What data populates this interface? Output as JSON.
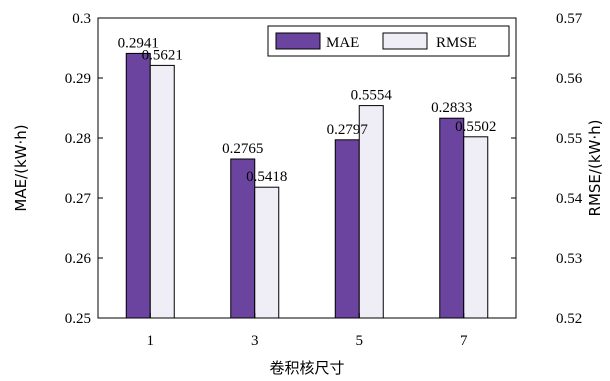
{
  "chart_data": {
    "type": "bar",
    "categories": [
      "1",
      "3",
      "5",
      "7"
    ],
    "xlabel": "卷积核尺寸",
    "ylabel_left": "MAE/(kW·h)",
    "ylabel_right": "RMSE/(kW·h)",
    "ylim_left": [
      0.25,
      0.3
    ],
    "ylim_right": [
      0.52,
      0.57
    ],
    "yticks_left": [
      "0.25",
      "0.26",
      "0.27",
      "0.28",
      "0.29",
      "0.3"
    ],
    "yticks_right": [
      "0.52",
      "0.53",
      "0.54",
      "0.55",
      "0.56",
      "0.57"
    ],
    "legend_position": "top-right",
    "grid": false,
    "series": [
      {
        "name": "MAE",
        "axis": "left",
        "color": "#6a449e",
        "values": [
          0.2941,
          0.2765,
          0.2797,
          0.2833
        ],
        "labels": [
          "0.2941",
          "0.2765",
          "0.2797",
          "0.2833"
        ]
      },
      {
        "name": "RMSE",
        "axis": "right",
        "color": "#efeef6",
        "values": [
          0.5621,
          0.5418,
          0.5554,
          0.5502
        ],
        "labels": [
          "0.5621",
          "0.5418",
          "0.5554",
          "0.5502"
        ]
      }
    ]
  }
}
